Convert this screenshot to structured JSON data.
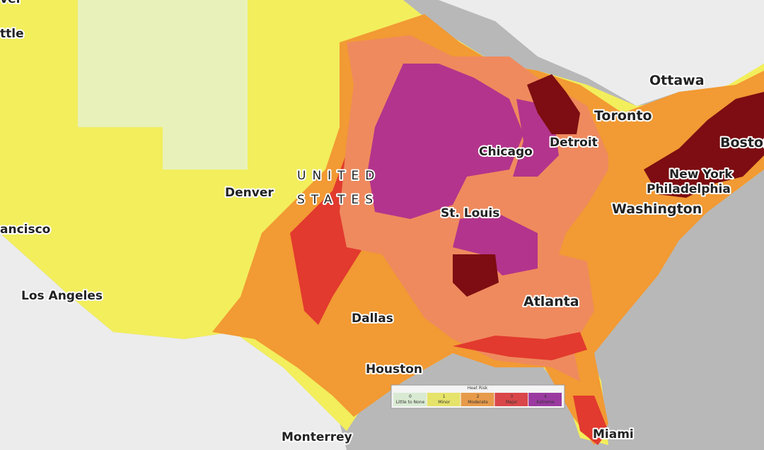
{
  "labels": {
    "ottawa": "Ottawa",
    "toronto": "Toronto",
    "boston": "Boston",
    "detroit": "Detroit",
    "chicago": "Chicago",
    "new_york": "New York",
    "philadelphia": "Philadelphia",
    "washington": "Washington",
    "united": "UNITED",
    "states": "STATES",
    "denver": "Denver",
    "st_louis": "St. Louis",
    "los_angeles": "Los Angeles",
    "dallas": "Dallas",
    "atlanta": "Atlanta",
    "houston": "Houston",
    "monterrey": "Monterrey",
    "miami": "Miami",
    "seattle_partial": "ttle",
    "san_francisco_partial": "ancisco",
    "top_partial": "ver"
  },
  "legend": {
    "title": "Heat Risk",
    "items": [
      {
        "level": 0,
        "label": "Little to None",
        "color": "#d9ead3"
      },
      {
        "level": 1,
        "label": "Minor",
        "color": "#e6e36a"
      },
      {
        "level": 2,
        "label": "Moderate",
        "color": "#e79a4a"
      },
      {
        "level": 3,
        "label": "Major",
        "color": "#d9474a"
      },
      {
        "level": 4,
        "label": "Extreme",
        "color": "#9a3aa0"
      }
    ]
  }
}
